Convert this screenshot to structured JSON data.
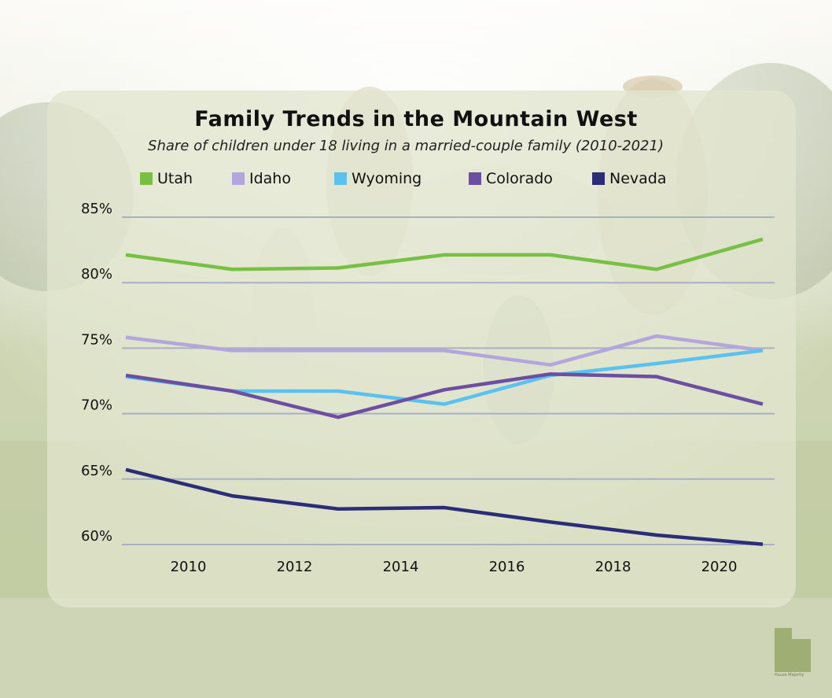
{
  "chart_data": {
    "type": "line",
    "title": "Family Trends in the Mountain West",
    "subtitle": "Share of children under 18 living in a married-couple family (2010-2021)",
    "x": [
      2009,
      2011,
      2013,
      2015,
      2017,
      2019,
      2021
    ],
    "xticks": [
      "2010",
      "2012",
      "2014",
      "2016",
      "2018",
      "2020"
    ],
    "xtick_values": [
      2010,
      2012,
      2014,
      2016,
      2018,
      2020
    ],
    "yticks": [
      "85%",
      "80%",
      "75%",
      "70%",
      "65%",
      "60%"
    ],
    "ytick_values": [
      85,
      80,
      75,
      70,
      65,
      60
    ],
    "ylim": [
      60,
      85
    ],
    "grid": true,
    "legend_position": "top",
    "series": [
      {
        "name": "Utah",
        "color": "#78c043",
        "values": [
          81.4,
          80.3,
          80.4,
          81.4,
          81.4,
          80.3,
          82.6
        ]
      },
      {
        "name": "Idaho",
        "color": "#b3a6dc",
        "values": [
          75.1,
          74.1,
          74.1,
          74.1,
          73.0,
          75.2,
          74.1
        ]
      },
      {
        "name": "Wyoming",
        "color": "#5bc2f0",
        "values": [
          72.1,
          71.0,
          71.0,
          70.0,
          72.2,
          73.1,
          74.1
        ]
      },
      {
        "name": "Colorado",
        "color": "#6d4fa2",
        "values": [
          72.2,
          71.0,
          69.0,
          71.1,
          72.3,
          72.1,
          70.0
        ]
      },
      {
        "name": "Nevada",
        "color": "#2b2d78",
        "values": [
          65.0,
          63.0,
          62.0,
          62.1,
          61.0,
          60.0,
          59.3
        ]
      }
    ]
  },
  "legend": [
    {
      "label": "Utah",
      "color": "#78c043"
    },
    {
      "label": "Idaho",
      "color": "#b3a6dc"
    },
    {
      "label": "Wyoming",
      "color": "#5bc2f0"
    },
    {
      "label": "Colorado",
      "color": "#6d4fa2"
    },
    {
      "label": "Nevada",
      "color": "#2b2d78"
    }
  ],
  "logo": {
    "text": "House Majority",
    "color": "#9aab6d"
  }
}
